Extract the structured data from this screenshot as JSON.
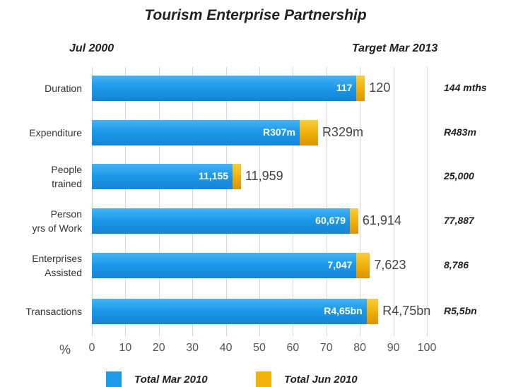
{
  "chart_data": {
    "type": "stacked-bar-horizontal",
    "title": "Tourism Enterprise Partnership",
    "left_header": "Jul 2000",
    "right_header": "Target Mar 2013",
    "x_label": "%",
    "categories": [
      "Duration",
      "Expenditure",
      "People\ntrained",
      "Person\nyrs of Work",
      "Enterprises\nAssisted",
      "Transactions"
    ],
    "series": [
      {
        "name": "Total Mar 2010",
        "color": "#1d9aea",
        "values": [
          79,
          62,
          42,
          77,
          79,
          82
        ]
      },
      {
        "name": "Total Jun 2010",
        "color": "#f2b10c",
        "values": [
          2.5,
          5.5,
          2.5,
          2.5,
          4,
          3.5
        ]
      }
    ],
    "inner_labels": [
      "117",
      "R307m",
      "11,155",
      "60,679",
      "7,047",
      "R4,65bn"
    ],
    "end_labels": [
      "120",
      "R329m",
      "11,959",
      "61,914",
      "7,623",
      "R4,75bn"
    ],
    "target_labels": [
      "144 mths",
      "R483m",
      "25,000",
      "77,887",
      "8,786",
      "R5,5bn"
    ],
    "xlim": [
      0,
      100
    ],
    "xticks": [
      0,
      10,
      20,
      30,
      40,
      50,
      60,
      70,
      80,
      90,
      100
    ],
    "grid": true
  }
}
